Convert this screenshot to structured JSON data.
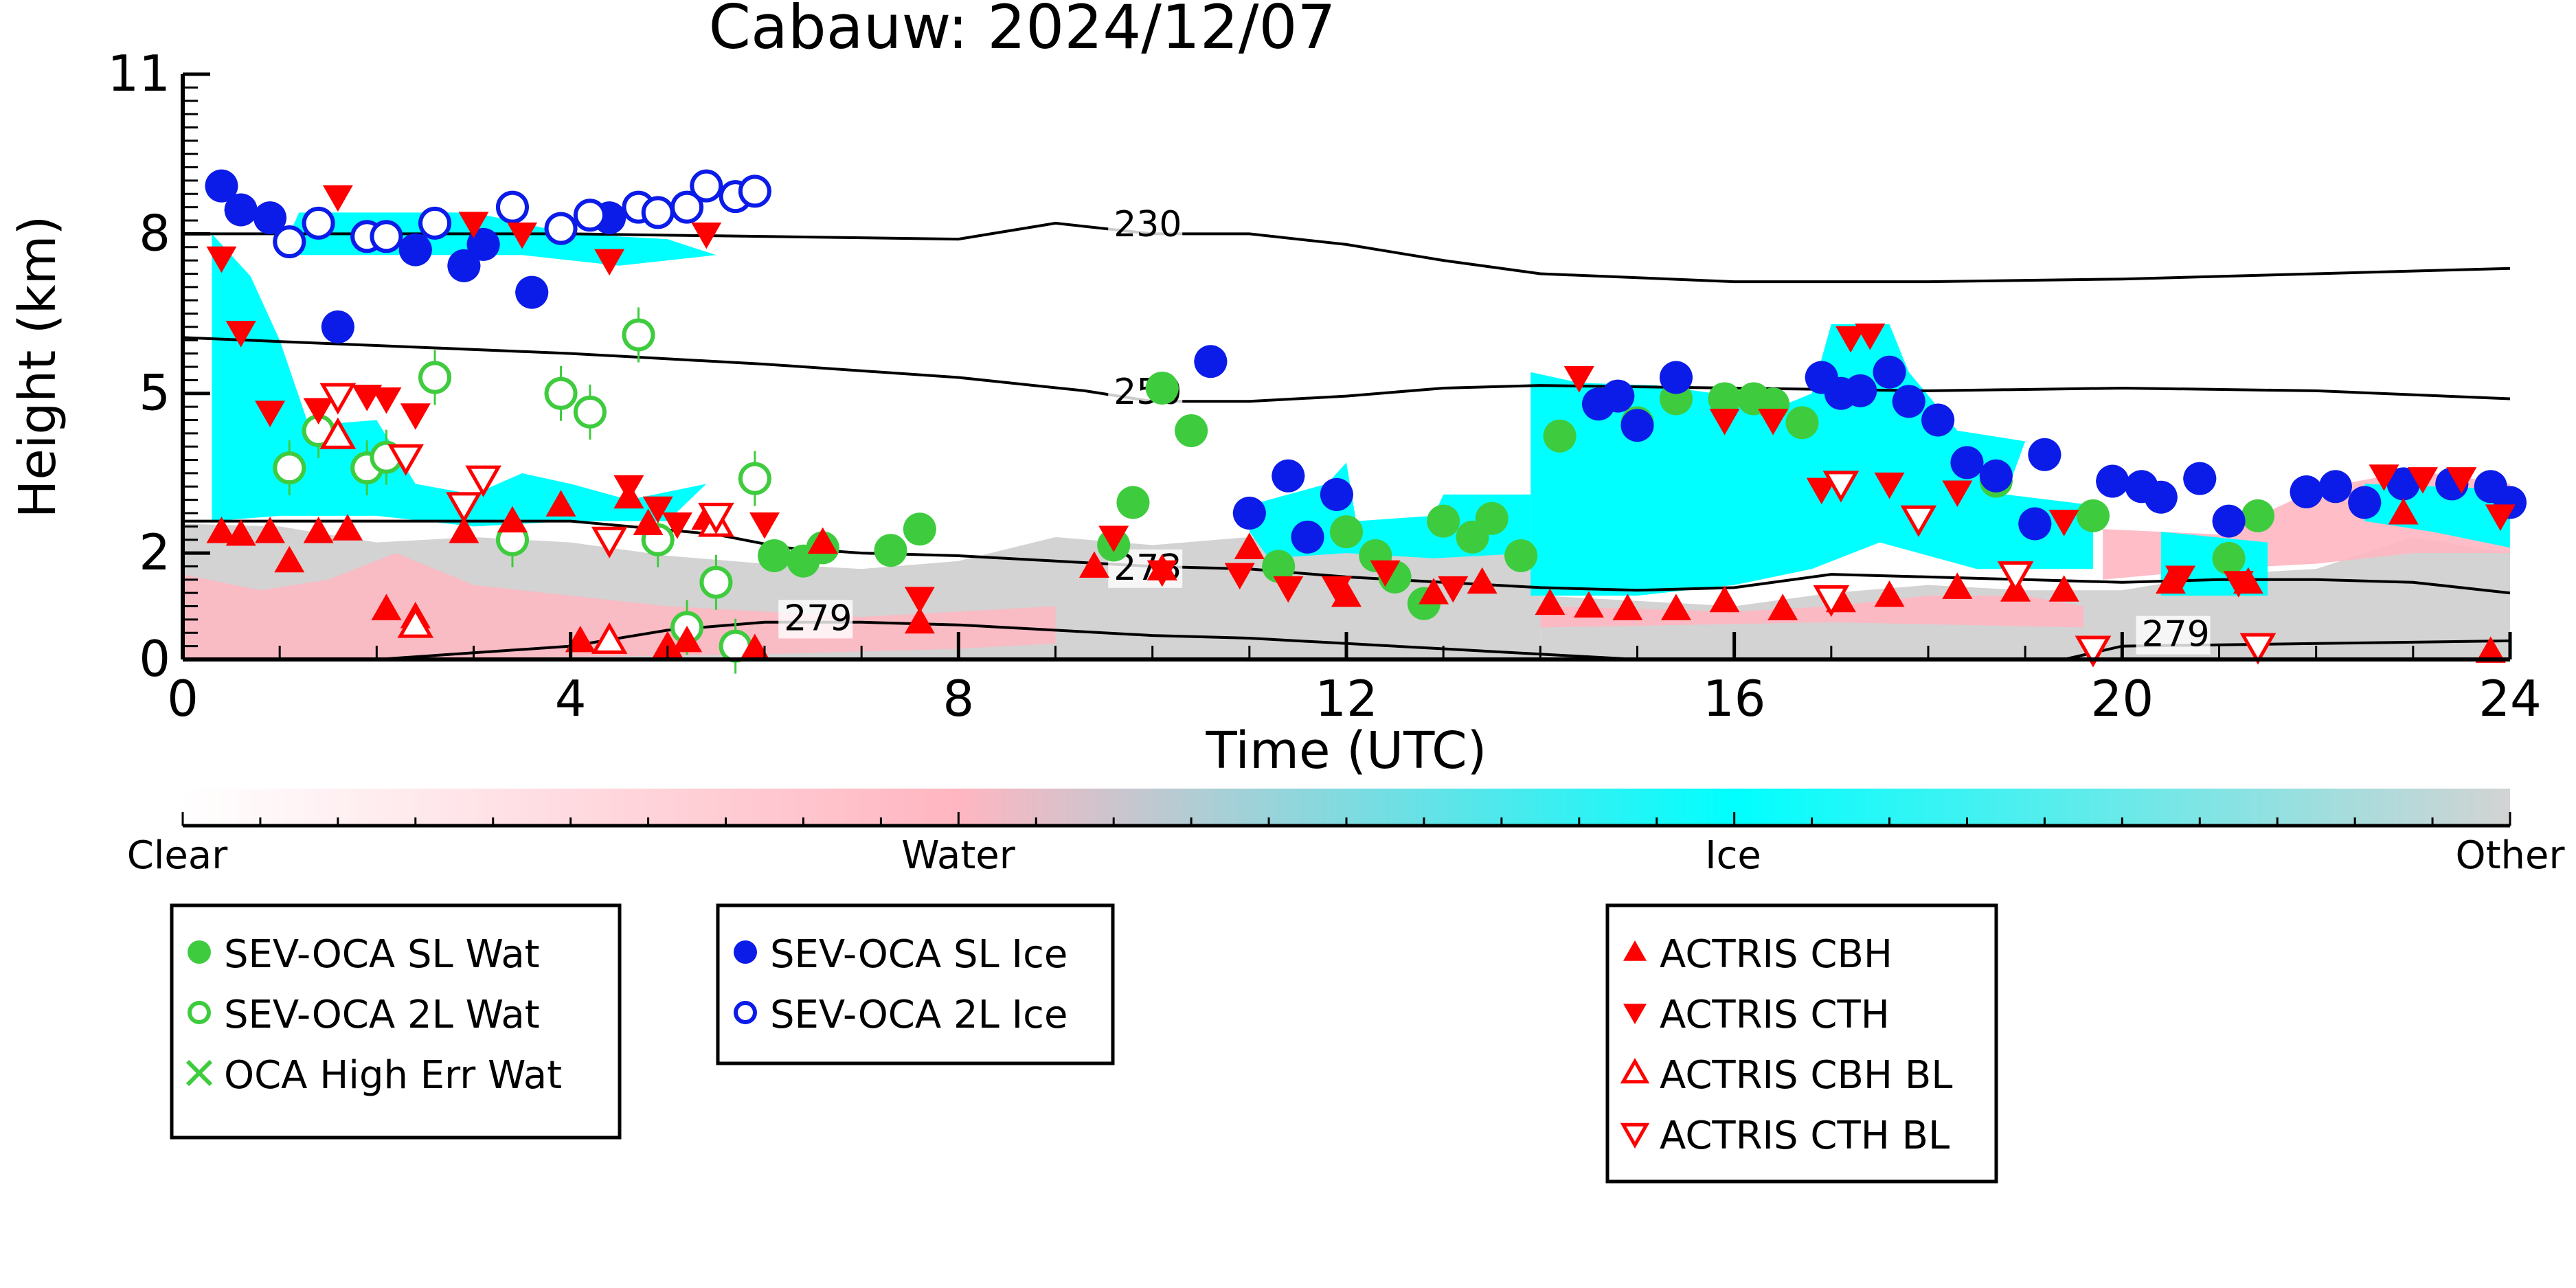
{
  "chart_data": {
    "type": "scatter",
    "title": "Cabauw: 2024/12/07",
    "xlabel": "Time (UTC)",
    "ylabel": "Height (km)",
    "xlim": [
      0,
      24
    ],
    "ylim": [
      0,
      11
    ],
    "x_ticks": [
      0,
      4,
      8,
      12,
      16,
      20,
      24
    ],
    "y_ticks": [
      0,
      2,
      5,
      8,
      11
    ],
    "colorbar": {
      "labels": [
        "Clear",
        "Water",
        "Ice",
        "Other"
      ],
      "colors": [
        "#ffffff",
        "#ffb6c1",
        "#00ffff",
        "#d3d3d3"
      ]
    },
    "temperature_contours": [
      {
        "label": "230",
        "points": [
          [
            0,
            8.0
          ],
          [
            4,
            8.0
          ],
          [
            8,
            7.9
          ],
          [
            9,
            8.2
          ],
          [
            10,
            8.0
          ],
          [
            11,
            8.0
          ],
          [
            12,
            7.8
          ],
          [
            13,
            7.5
          ],
          [
            14,
            7.25
          ],
          [
            16,
            7.1
          ],
          [
            18,
            7.1
          ],
          [
            20,
            7.15
          ],
          [
            22,
            7.25
          ],
          [
            24,
            7.35
          ]
        ]
      },
      {
        "label": "250",
        "points": [
          [
            0,
            6.05
          ],
          [
            2,
            5.9
          ],
          [
            4,
            5.75
          ],
          [
            6,
            5.55
          ],
          [
            8,
            5.3
          ],
          [
            9.3,
            5.05
          ],
          [
            10,
            4.85
          ],
          [
            11,
            4.85
          ],
          [
            12,
            4.95
          ],
          [
            13,
            5.1
          ],
          [
            14,
            5.15
          ],
          [
            16,
            5.1
          ],
          [
            18,
            5.05
          ],
          [
            20,
            5.1
          ],
          [
            22,
            5.05
          ],
          [
            24,
            4.9
          ]
        ]
      },
      {
        "label": "273",
        "points": [
          [
            0,
            2.6
          ],
          [
            2,
            2.6
          ],
          [
            4,
            2.6
          ],
          [
            5.5,
            2.35
          ],
          [
            6.2,
            2.1
          ],
          [
            7,
            2.0
          ],
          [
            8,
            1.95
          ],
          [
            9,
            1.85
          ],
          [
            10,
            1.75
          ],
          [
            11,
            1.7
          ],
          [
            12,
            1.55
          ],
          [
            13,
            1.45
          ],
          [
            14,
            1.35
          ],
          [
            15,
            1.3
          ],
          [
            16,
            1.35
          ],
          [
            17,
            1.6
          ],
          [
            18,
            1.55
          ],
          [
            19,
            1.5
          ],
          [
            20,
            1.45
          ],
          [
            21,
            1.5
          ],
          [
            22,
            1.5
          ],
          [
            23,
            1.45
          ],
          [
            24,
            1.25
          ]
        ]
      },
      {
        "label": "279",
        "points": [
          [
            0,
            0.0
          ],
          [
            2,
            0.0
          ],
          [
            4,
            0.25
          ],
          [
            5,
            0.55
          ],
          [
            6,
            0.7
          ],
          [
            7,
            0.7
          ],
          [
            8,
            0.65
          ],
          [
            9,
            0.55
          ],
          [
            10,
            0.45
          ],
          [
            11,
            0.4
          ],
          [
            12,
            0.3
          ],
          [
            13,
            0.2
          ],
          [
            14,
            0.1
          ],
          [
            15,
            0.0
          ]
        ]
      },
      {
        "label": "279",
        "points": [
          [
            19.4,
            0.0
          ],
          [
            20,
            0.25
          ],
          [
            22,
            0.3
          ],
          [
            24,
            0.35
          ]
        ]
      }
    ],
    "series": [
      {
        "name": "SEV-OCA SL Wat",
        "marker": "filled-circle",
        "color": "#3ecc3e",
        "points": [
          [
            6.1,
            1.95
          ],
          [
            6.4,
            1.85
          ],
          [
            6.6,
            2.1
          ],
          [
            7.3,
            2.05
          ],
          [
            7.6,
            2.45
          ],
          [
            9.6,
            2.15
          ],
          [
            9.8,
            2.95
          ],
          [
            10.1,
            5.1
          ],
          [
            10.4,
            4.3
          ],
          [
            11.3,
            1.75
          ],
          [
            12.0,
            2.4
          ],
          [
            12.3,
            1.95
          ],
          [
            12.5,
            1.55
          ],
          [
            12.8,
            1.05
          ],
          [
            13.0,
            2.6
          ],
          [
            13.3,
            2.3
          ],
          [
            13.5,
            2.65
          ],
          [
            13.8,
            1.95
          ],
          [
            14.2,
            4.2
          ],
          [
            15.0,
            4.45
          ],
          [
            15.4,
            4.9
          ],
          [
            15.9,
            4.9
          ],
          [
            16.2,
            4.9
          ],
          [
            16.4,
            4.8
          ],
          [
            16.7,
            4.45
          ],
          [
            18.7,
            3.35
          ],
          [
            19.7,
            2.7
          ],
          [
            21.1,
            1.9
          ],
          [
            21.4,
            2.7
          ]
        ]
      },
      {
        "name": "SEV-OCA 2L Wat",
        "marker": "open-circle",
        "color": "#3ecc3e",
        "points": [
          [
            1.1,
            3.6
          ],
          [
            1.4,
            4.3
          ],
          [
            1.9,
            3.6
          ],
          [
            2.1,
            3.8
          ],
          [
            2.6,
            5.3
          ],
          [
            3.4,
            2.25
          ],
          [
            3.9,
            5.0
          ],
          [
            4.2,
            4.65
          ],
          [
            4.7,
            6.1
          ],
          [
            4.9,
            2.25
          ],
          [
            5.2,
            0.6
          ],
          [
            5.5,
            1.45
          ],
          [
            5.7,
            0.25
          ],
          [
            5.9,
            3.4
          ]
        ]
      },
      {
        "name": "OCA High Err Wat",
        "marker": "cross",
        "color": "#3ecc3e",
        "points": []
      },
      {
        "name": "SEV-OCA SL Ice",
        "marker": "filled-circle",
        "color": "#0b1be8",
        "points": [
          [
            0.4,
            8.9
          ],
          [
            0.6,
            8.45
          ],
          [
            0.9,
            8.3
          ],
          [
            1.6,
            6.25
          ],
          [
            2.4,
            7.7
          ],
          [
            2.9,
            7.4
          ],
          [
            3.1,
            7.8
          ],
          [
            3.6,
            6.9
          ],
          [
            4.4,
            8.3
          ],
          [
            10.6,
            5.6
          ],
          [
            11.0,
            2.75
          ],
          [
            11.4,
            3.45
          ],
          [
            11.6,
            2.3
          ],
          [
            11.9,
            3.1
          ],
          [
            14.6,
            4.8
          ],
          [
            14.8,
            4.95
          ],
          [
            15.0,
            4.4
          ],
          [
            15.4,
            5.3
          ],
          [
            16.9,
            5.3
          ],
          [
            17.1,
            5.0
          ],
          [
            17.3,
            5.05
          ],
          [
            17.6,
            5.4
          ],
          [
            17.8,
            4.85
          ],
          [
            18.1,
            4.5
          ],
          [
            18.4,
            3.7
          ],
          [
            18.7,
            3.45
          ],
          [
            19.1,
            2.55
          ],
          [
            19.2,
            3.85
          ],
          [
            19.9,
            3.35
          ],
          [
            20.2,
            3.25
          ],
          [
            20.4,
            3.05
          ],
          [
            20.8,
            3.4
          ],
          [
            21.1,
            2.6
          ],
          [
            21.9,
            3.15
          ],
          [
            22.2,
            3.25
          ],
          [
            22.5,
            2.95
          ],
          [
            22.9,
            3.3
          ],
          [
            23.4,
            3.3
          ],
          [
            23.8,
            3.25
          ],
          [
            24.0,
            2.95
          ]
        ]
      },
      {
        "name": "SEV-OCA 2L Ice",
        "marker": "open-circle",
        "color": "#0b1be8",
        "points": [
          [
            1.1,
            7.85
          ],
          [
            1.4,
            8.2
          ],
          [
            1.9,
            7.95
          ],
          [
            2.1,
            7.95
          ],
          [
            2.6,
            8.2
          ],
          [
            3.4,
            8.5
          ],
          [
            3.9,
            8.1
          ],
          [
            4.2,
            8.35
          ],
          [
            4.7,
            8.5
          ],
          [
            4.9,
            8.4
          ],
          [
            5.2,
            8.5
          ],
          [
            5.4,
            8.9
          ],
          [
            5.7,
            8.7
          ],
          [
            5.9,
            8.8
          ]
        ]
      },
      {
        "name": "ACTRIS CBH",
        "marker": "triangle-up",
        "color": "#ff0000",
        "points": [
          [
            0.4,
            2.4
          ],
          [
            0.6,
            2.35
          ],
          [
            0.9,
            2.4
          ],
          [
            1.1,
            1.85
          ],
          [
            1.4,
            2.4
          ],
          [
            1.7,
            2.45
          ],
          [
            2.1,
            0.95
          ],
          [
            2.4,
            0.8
          ],
          [
            2.9,
            2.4
          ],
          [
            3.4,
            2.6
          ],
          [
            3.9,
            2.9
          ],
          [
            4.1,
            0.35
          ],
          [
            4.6,
            3.05
          ],
          [
            4.8,
            2.55
          ],
          [
            5.0,
            0.25
          ],
          [
            5.2,
            0.35
          ],
          [
            5.4,
            2.65
          ],
          [
            5.9,
            0.2
          ],
          [
            6.6,
            2.2
          ],
          [
            7.6,
            0.7
          ],
          [
            9.4,
            1.75
          ],
          [
            10.1,
            1.7
          ],
          [
            11.0,
            2.1
          ],
          [
            12.0,
            1.2
          ],
          [
            12.9,
            1.25
          ],
          [
            13.4,
            1.45
          ],
          [
            14.1,
            1.05
          ],
          [
            14.5,
            1.0
          ],
          [
            14.9,
            0.95
          ],
          [
            15.4,
            0.95
          ],
          [
            15.9,
            1.1
          ],
          [
            16.5,
            0.95
          ],
          [
            17.1,
            1.1
          ],
          [
            17.6,
            1.2
          ],
          [
            18.3,
            1.35
          ],
          [
            18.9,
            1.3
          ],
          [
            19.4,
            1.3
          ],
          [
            20.5,
            1.45
          ],
          [
            21.3,
            1.45
          ],
          [
            22.9,
            2.75
          ],
          [
            23.8,
            0.15
          ]
        ]
      },
      {
        "name": "ACTRIS CTH",
        "marker": "triangle-down",
        "color": "#ff0000",
        "points": [
          [
            0.4,
            7.55
          ],
          [
            0.6,
            6.15
          ],
          [
            0.9,
            4.65
          ],
          [
            1.4,
            4.7
          ],
          [
            1.6,
            8.7
          ],
          [
            1.9,
            4.95
          ],
          [
            2.1,
            4.9
          ],
          [
            2.4,
            4.6
          ],
          [
            3.0,
            8.2
          ],
          [
            3.5,
            8.0
          ],
          [
            4.4,
            7.5
          ],
          [
            4.6,
            3.25
          ],
          [
            4.9,
            2.85
          ],
          [
            5.1,
            2.55
          ],
          [
            5.4,
            8.0
          ],
          [
            6.0,
            2.55
          ],
          [
            7.6,
            1.15
          ],
          [
            9.6,
            2.3
          ],
          [
            10.1,
            1.65
          ],
          [
            10.9,
            1.6
          ],
          [
            11.4,
            1.35
          ],
          [
            11.9,
            1.35
          ],
          [
            12.4,
            1.65
          ],
          [
            13.1,
            1.35
          ],
          [
            14.4,
            5.3
          ],
          [
            15.9,
            4.5
          ],
          [
            16.4,
            4.5
          ],
          [
            16.9,
            3.2
          ],
          [
            17.2,
            6.05
          ],
          [
            17.4,
            6.1
          ],
          [
            17.6,
            3.3
          ],
          [
            18.3,
            3.15
          ],
          [
            19.4,
            2.6
          ],
          [
            20.6,
            1.55
          ],
          [
            21.2,
            1.45
          ],
          [
            22.7,
            3.45
          ],
          [
            23.1,
            3.4
          ],
          [
            23.5,
            3.4
          ],
          [
            23.9,
            2.7
          ]
        ]
      },
      {
        "name": "ACTRIS CBH BL",
        "marker": "open-triangle-up",
        "color": "#ff0000",
        "points": [
          [
            1.6,
            4.2
          ],
          [
            2.4,
            0.65
          ],
          [
            4.4,
            0.35
          ],
          [
            5.5,
            2.55
          ]
        ]
      },
      {
        "name": "ACTRIS CTH BL",
        "marker": "open-triangle-down",
        "color": "#ff0000",
        "points": [
          [
            1.6,
            4.95
          ],
          [
            2.3,
            3.8
          ],
          [
            2.9,
            2.9
          ],
          [
            3.1,
            3.4
          ],
          [
            4.4,
            2.25
          ],
          [
            5.5,
            2.7
          ],
          [
            17.0,
            1.15
          ],
          [
            17.1,
            3.3
          ],
          [
            17.9,
            2.65
          ],
          [
            18.9,
            1.6
          ],
          [
            19.7,
            0.2
          ],
          [
            21.4,
            0.25
          ]
        ]
      }
    ]
  },
  "legends": [
    {
      "entries": [
        {
          "label": "SEV-OCA SL Wat",
          "marker": "filled-circle",
          "color": "#3ecc3e"
        },
        {
          "label": "SEV-OCA 2L Wat",
          "marker": "open-circle",
          "color": "#3ecc3e"
        },
        {
          "label": "OCA High Err Wat",
          "marker": "cross",
          "color": "#3ecc3e"
        }
      ]
    },
    {
      "entries": [
        {
          "label": "SEV-OCA SL Ice",
          "marker": "filled-circle",
          "color": "#0b1be8"
        },
        {
          "label": "SEV-OCA 2L Ice",
          "marker": "open-circle",
          "color": "#0b1be8"
        }
      ]
    },
    {
      "entries": [
        {
          "label": "ACTRIS CBH",
          "marker": "triangle-up",
          "color": "#ff0000"
        },
        {
          "label": "ACTRIS CTH",
          "marker": "triangle-down",
          "color": "#ff0000"
        },
        {
          "label": "ACTRIS CBH BL",
          "marker": "open-triangle-up",
          "color": "#ff0000"
        },
        {
          "label": "ACTRIS CTH BL",
          "marker": "open-triangle-down",
          "color": "#ff0000"
        }
      ]
    }
  ]
}
